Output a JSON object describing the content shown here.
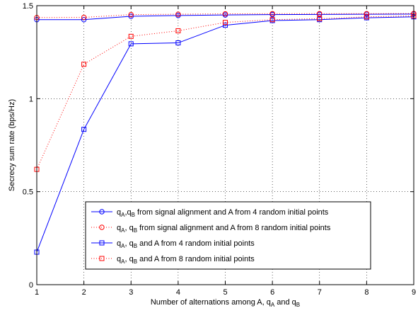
{
  "chart_data": {
    "type": "line",
    "xlabel": {
      "pre": "Number of alternations among A, q",
      "sub1": "A",
      "mid": " and q",
      "sub2": "B"
    },
    "ylabel": "Secrecy sum rate (bps/Hz)",
    "xlim": [
      1,
      9
    ],
    "ylim": [
      0,
      1.5
    ],
    "xticks": [
      "1",
      "2",
      "3",
      "4",
      "5",
      "6",
      "7",
      "8",
      "9"
    ],
    "yticks": [
      "0",
      "0.5",
      "1",
      "1.5"
    ],
    "grid": true,
    "legend_position": "lower-center",
    "x": [
      1,
      2,
      3,
      4,
      5,
      6,
      7,
      8,
      9
    ],
    "series": [
      {
        "legend": [
          {
            "t": "q"
          },
          {
            "t": "A",
            "sub": true
          },
          {
            "t": ",q"
          },
          {
            "t": "B",
            "sub": true
          },
          {
            "t": " from signal alignment and A from 4 random initial points"
          }
        ],
        "color": "#0000ff",
        "dash": "solid",
        "marker": "circle",
        "values": [
          1.425,
          1.425,
          1.443,
          1.447,
          1.45,
          1.452,
          1.453,
          1.454,
          1.455
        ]
      },
      {
        "legend": [
          {
            "t": "q"
          },
          {
            "t": "A",
            "sub": true
          },
          {
            "t": ", q"
          },
          {
            "t": "B",
            "sub": true
          },
          {
            "t": " from signal alignment and A from 8 random initial points"
          }
        ],
        "color": "#ff0000",
        "dash": "dotted",
        "marker": "circle",
        "values": [
          1.436,
          1.437,
          1.452,
          1.454,
          1.456,
          1.457,
          1.457,
          1.457,
          1.458
        ]
      },
      {
        "legend": [
          {
            "t": "q"
          },
          {
            "t": "A",
            "sub": true
          },
          {
            "t": ", q"
          },
          {
            "t": "B",
            "sub": true
          },
          {
            "t": " and A from 4 random initial points"
          }
        ],
        "color": "#0000ff",
        "dash": "solid",
        "marker": "square",
        "values": [
          0.175,
          0.835,
          1.295,
          1.3,
          1.395,
          1.42,
          1.425,
          1.435,
          1.44
        ]
      },
      {
        "legend": [
          {
            "t": "q"
          },
          {
            "t": "A",
            "sub": true
          },
          {
            "t": ", q"
          },
          {
            "t": "B",
            "sub": true
          },
          {
            "t": " and A from 8 random initial points"
          }
        ],
        "color": "#ff0000",
        "dash": "dotted",
        "marker": "square",
        "values": [
          0.62,
          1.185,
          1.335,
          1.365,
          1.41,
          1.425,
          1.43,
          1.44,
          1.445
        ]
      }
    ]
  }
}
